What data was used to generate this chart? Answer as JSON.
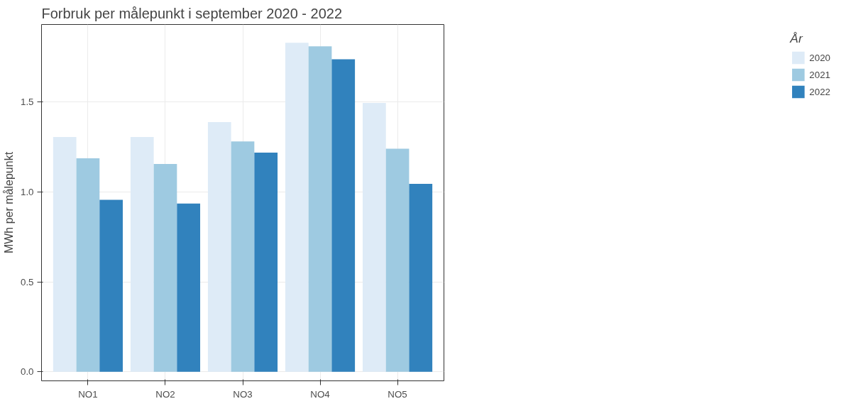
{
  "chart_data": {
    "type": "bar",
    "title": "Forbruk per målepunkt i september 2020 - 2022",
    "ylabel": "MWh per målepunkt",
    "legend_title": "År",
    "categories": [
      "NO1",
      "NO2",
      "NO3",
      "NO4",
      "NO5"
    ],
    "series": [
      {
        "name": "2020",
        "color": "#deebf7",
        "values": [
          1.305,
          1.305,
          1.388,
          1.828,
          1.494
        ]
      },
      {
        "name": "2021",
        "color": "#9ecae1",
        "values": [
          1.187,
          1.155,
          1.28,
          1.809,
          1.24
        ]
      },
      {
        "name": "2022",
        "color": "#3182bd",
        "values": [
          0.956,
          0.935,
          1.218,
          1.737,
          1.045
        ]
      }
    ],
    "ylim": [
      -0.05,
      1.93
    ],
    "yticks": [
      {
        "value": 0,
        "label": "0.0"
      },
      {
        "value": 0.5,
        "label": "0.5"
      },
      {
        "value": 1,
        "label": "1.0"
      },
      {
        "value": 1.5,
        "label": "1.5"
      }
    ],
    "grid": true,
    "legend": "right"
  }
}
